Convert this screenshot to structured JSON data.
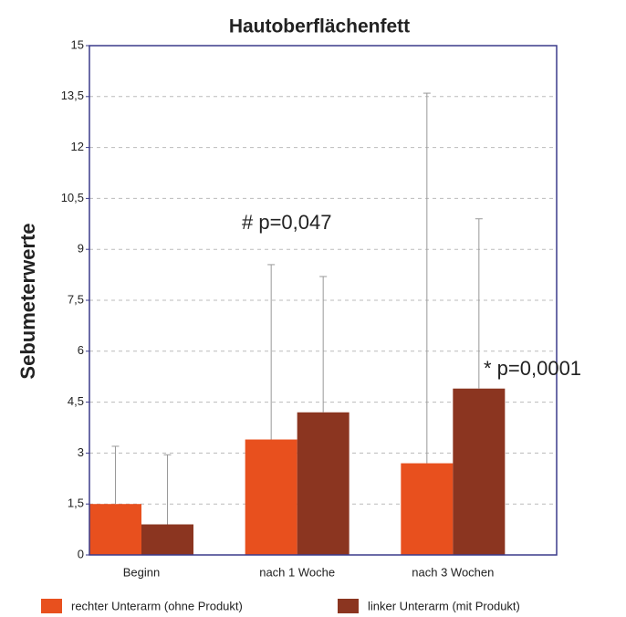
{
  "chart_data": {
    "type": "bar",
    "title": "Hautoberflächenfett",
    "y_label": "Sebumeterwerte",
    "categories": [
      "Beginn",
      "nach 1 Woche",
      "nach 3 Wochen"
    ],
    "series": [
      {
        "name": "rechter Unterarm (ohne Produkt)",
        "color": "#e8501e",
        "values": [
          1.5,
          3.4,
          2.7
        ],
        "errors": [
          1.7,
          5.15,
          10.9
        ]
      },
      {
        "name": "linker Unterarm (mit Produkt)",
        "color": "#8b3520",
        "values": [
          0.9,
          4.2,
          4.9
        ],
        "errors": [
          2.05,
          4.0,
          5.0
        ]
      }
    ],
    "ylim": [
      0,
      15
    ],
    "yticks": [
      0,
      {
        "value": 1.5,
        "label": "1,5"
      },
      3,
      {
        "value": 4.5,
        "label": "4,5"
      },
      6,
      {
        "value": 7.5,
        "label": "7,5"
      },
      9,
      {
        "value": 10.5,
        "label": "10,5"
      },
      12,
      {
        "value": 13.5,
        "label": "13,5"
      },
      15
    ],
    "grid": true,
    "annotations": [
      {
        "text": "# p=0,047",
        "color": "#8a3a9a"
      },
      {
        "text": "* p=0,0001",
        "color": "#a03a30"
      }
    ],
    "legend": "bottom"
  }
}
